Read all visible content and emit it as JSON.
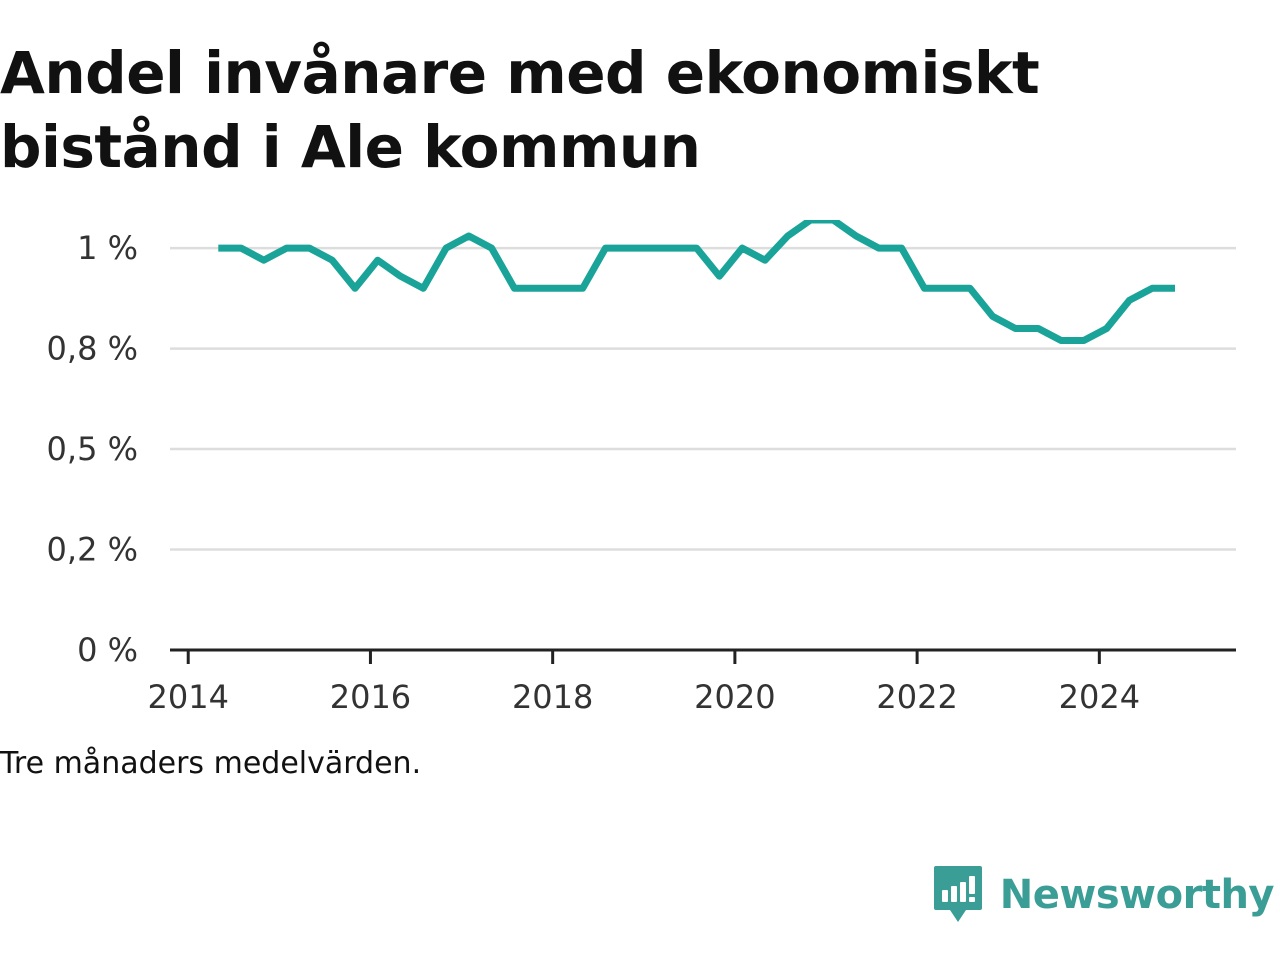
{
  "title": "Andel invånare med ekonomiskt bistånd i Ale kommun",
  "note": "Tre månaders medelvärden.",
  "brand": {
    "name": "Newsworthy",
    "color": "#3a9d96"
  },
  "chart_data": {
    "type": "line",
    "title": "Andel invånare med ekonomiskt bistånd i Ale kommun",
    "xlabel": "",
    "ylabel": "",
    "x_tick_labels": [
      "2014",
      "2016",
      "2018",
      "2020",
      "2022",
      "2024"
    ],
    "x_tick_values": [
      2014,
      2016,
      2018,
      2020,
      2022,
      2024
    ],
    "xlim": [
      2013.8,
      2025.5
    ],
    "y_tick_labels": [
      "0 %",
      "0,2 %",
      "0,5 %",
      "0,8 %",
      "1 %"
    ],
    "y_tick_values": [
      0,
      0.25,
      0.5,
      0.75,
      1.0
    ],
    "ylim": [
      0,
      1.05
    ],
    "grid": true,
    "line_color": "#1aa398",
    "series": [
      {
        "x": [
          2014.33,
          2014.58,
          2014.83,
          2015.08,
          2015.33,
          2015.58,
          2015.83,
          2016.08,
          2016.33,
          2016.58,
          2016.83,
          2017.08,
          2017.33,
          2017.58,
          2017.83,
          2018.08,
          2018.33,
          2018.58,
          2018.83,
          2019.08,
          2019.33,
          2019.58,
          2019.83,
          2020.08,
          2020.33,
          2020.58,
          2020.83,
          2021.08,
          2021.33,
          2021.58,
          2021.83,
          2022.08,
          2022.33,
          2022.58,
          2022.83,
          2023.08,
          2023.33,
          2023.58,
          2023.83,
          2024.08,
          2024.33,
          2024.58,
          2024.83
        ],
        "values": [
          1.0,
          1.0,
          0.97,
          1.0,
          1.0,
          0.97,
          0.9,
          0.97,
          0.93,
          0.9,
          1.0,
          1.03,
          1.0,
          0.9,
          0.9,
          0.9,
          0.9,
          1.0,
          1.0,
          1.0,
          1.0,
          1.0,
          0.93,
          1.0,
          0.97,
          1.03,
          1.07,
          1.07,
          1.03,
          1.0,
          1.0,
          0.9,
          0.9,
          0.9,
          0.83,
          0.8,
          0.8,
          0.77,
          0.77,
          0.8,
          0.87,
          0.9,
          0.9
        ]
      }
    ]
  }
}
